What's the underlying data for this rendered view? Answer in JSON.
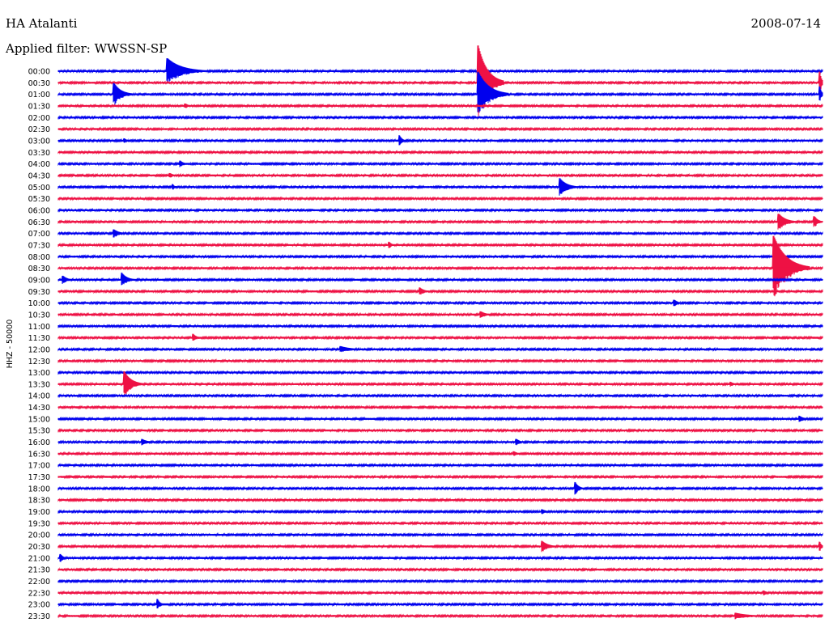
{
  "header": {
    "station": "HA Atalanti",
    "date": "2008-07-14",
    "filter_label": "Applied filter: WWSSN-SP"
  },
  "colors": {
    "line_a": "#0000ee",
    "line_b": "#ee1144"
  },
  "chart_data": {
    "type": "line",
    "title": "HA Atalanti",
    "ylabel": "HHZ - 50000",
    "rows": [
      "00:00",
      "00:30",
      "01:00",
      "01:30",
      "02:00",
      "02:30",
      "03:00",
      "03:30",
      "04:00",
      "04:30",
      "05:00",
      "05:30",
      "06:00",
      "06:30",
      "07:00",
      "07:30",
      "08:00",
      "08:30",
      "09:00",
      "09:30",
      "10:00",
      "10:30",
      "11:00",
      "11:30",
      "12:00",
      "12:30",
      "13:00",
      "13:30",
      "14:00",
      "14:30",
      "15:00",
      "15:30",
      "16:00",
      "16:30",
      "17:00",
      "17:30",
      "18:00",
      "18:30",
      "19:00",
      "19:30",
      "20:00",
      "20:30",
      "21:00",
      "21:30",
      "22:00",
      "22:30",
      "23:00",
      "23:30"
    ],
    "x_unit": "minutes into row",
    "xlim": [
      0,
      30
    ],
    "events": [
      {
        "row": "00:00",
        "x": 4.3,
        "amp": 16,
        "dur": 1.6
      },
      {
        "row": "00:30",
        "x": 16.5,
        "amp": 46,
        "dur": 1.0
      },
      {
        "row": "00:30",
        "x": 29.9,
        "amp": 14,
        "dur": 0.2
      },
      {
        "row": "01:00",
        "x": 2.2,
        "amp": 14,
        "dur": 0.8
      },
      {
        "row": "01:00",
        "x": 16.5,
        "amp": 28,
        "dur": 1.2
      },
      {
        "row": "01:00",
        "x": 29.9,
        "amp": 10,
        "dur": 0.2
      },
      {
        "row": "01:30",
        "x": 5.0,
        "amp": 3,
        "dur": 0.4
      },
      {
        "row": "03:00",
        "x": 2.6,
        "amp": 3,
        "dur": 0.3
      },
      {
        "row": "03:00",
        "x": 13.4,
        "amp": 7,
        "dur": 0.3
      },
      {
        "row": "04:00",
        "x": 4.8,
        "amp": 4,
        "dur": 0.4
      },
      {
        "row": "04:30",
        "x": 4.4,
        "amp": 3,
        "dur": 0.4
      },
      {
        "row": "05:00",
        "x": 4.5,
        "amp": 4,
        "dur": 0.2
      },
      {
        "row": "05:00",
        "x": 19.7,
        "amp": 11,
        "dur": 0.8
      },
      {
        "row": "06:30",
        "x": 28.3,
        "amp": 10,
        "dur": 0.8
      },
      {
        "row": "06:30",
        "x": 29.7,
        "amp": 7,
        "dur": 0.4
      },
      {
        "row": "07:00",
        "x": 2.2,
        "amp": 5,
        "dur": 0.6
      },
      {
        "row": "07:30",
        "x": 13.0,
        "amp": 4,
        "dur": 0.3
      },
      {
        "row": "08:30",
        "x": 28.1,
        "amp": 40,
        "dur": 1.4
      },
      {
        "row": "09:00",
        "x": 0.2,
        "amp": 5,
        "dur": 0.5
      },
      {
        "row": "09:00",
        "x": 2.5,
        "amp": 9,
        "dur": 0.6
      },
      {
        "row": "09:30",
        "x": 14.2,
        "amp": 5,
        "dur": 0.5
      },
      {
        "row": "10:00",
        "x": 24.2,
        "amp": 4,
        "dur": 0.4
      },
      {
        "row": "10:30",
        "x": 16.6,
        "amp": 4,
        "dur": 0.6
      },
      {
        "row": "11:30",
        "x": 5.3,
        "amp": 5,
        "dur": 0.4
      },
      {
        "row": "12:00",
        "x": 11.1,
        "amp": 4,
        "dur": 1.2
      },
      {
        "row": "13:30",
        "x": 2.6,
        "amp": 16,
        "dur": 0.8
      },
      {
        "row": "13:30",
        "x": 26.4,
        "amp": 3,
        "dur": 0.4
      },
      {
        "row": "15:00",
        "x": 29.1,
        "amp": 4,
        "dur": 0.5
      },
      {
        "row": "16:00",
        "x": 3.3,
        "amp": 4,
        "dur": 0.6
      },
      {
        "row": "16:00",
        "x": 18.0,
        "amp": 4,
        "dur": 0.4
      },
      {
        "row": "16:30",
        "x": 17.9,
        "amp": 3,
        "dur": 0.4
      },
      {
        "row": "18:00",
        "x": 20.3,
        "amp": 8,
        "dur": 0.4
      },
      {
        "row": "19:00",
        "x": 19.0,
        "amp": 3,
        "dur": 0.5
      },
      {
        "row": "20:30",
        "x": 19.0,
        "amp": 7,
        "dur": 0.7
      },
      {
        "row": "20:30",
        "x": 29.9,
        "amp": 6,
        "dur": 0.2
      },
      {
        "row": "21:00",
        "x": 0.1,
        "amp": 5,
        "dur": 0.3
      },
      {
        "row": "22:30",
        "x": 27.7,
        "amp": 3,
        "dur": 0.4
      },
      {
        "row": "23:00",
        "x": 3.9,
        "amp": 7,
        "dur": 0.3
      },
      {
        "row": "23:30",
        "x": 26.6,
        "amp": 4,
        "dur": 1.6
      }
    ]
  }
}
